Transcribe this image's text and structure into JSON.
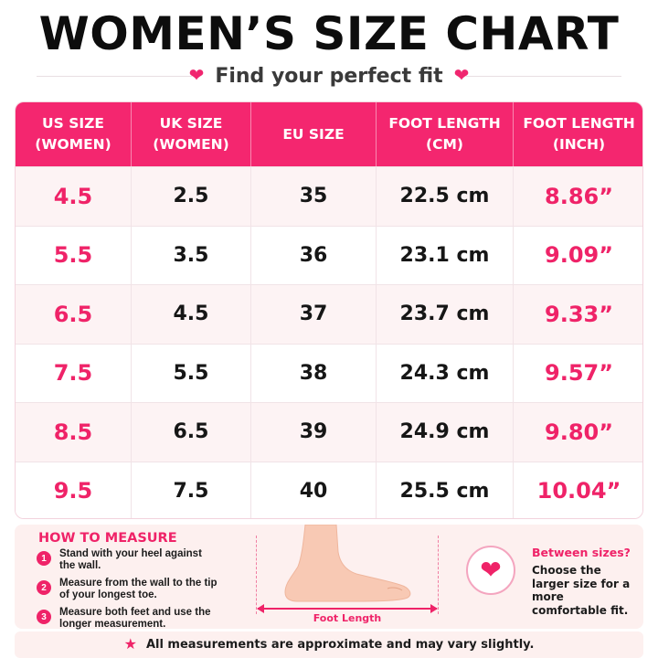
{
  "header": {
    "title": "WOMEN’S SIZE CHART",
    "subtitle": "Find your perfect fit",
    "heart_icon": "heart-icon",
    "accent_color": "#ef2368"
  },
  "table": {
    "columns": [
      {
        "line1": "US SIZE",
        "line2": "(WOMEN)"
      },
      {
        "line1": "UK SIZE",
        "line2": "(WOMEN)"
      },
      {
        "line1": "EU SIZE",
        "line2": ""
      },
      {
        "line1": "FOOT LENGTH",
        "line2": "(CM)"
      },
      {
        "line1": "FOOT LENGTH",
        "line2": "(INCH)"
      }
    ],
    "rows": [
      [
        "4.5",
        "2.5",
        "35",
        "22.5 cm",
        "8.86”"
      ],
      [
        "5.5",
        "3.5",
        "36",
        "23.1 cm",
        "9.09”"
      ],
      [
        "6.5",
        "4.5",
        "37",
        "23.7 cm",
        "9.33”"
      ],
      [
        "7.5",
        "5.5",
        "38",
        "24.3 cm",
        "9.57”"
      ],
      [
        "8.5",
        "6.5",
        "39",
        "24.9 cm",
        "9.80”"
      ],
      [
        "9.5",
        "7.5",
        "40",
        "25.5 cm",
        "10.04”"
      ]
    ]
  },
  "how_to_measure": {
    "title": "HOW TO MEASURE",
    "steps": [
      {
        "num": "1",
        "text": "Stand with your heel against the wall."
      },
      {
        "num": "2",
        "text": "Measure from the wall to the tip of your longest toe."
      },
      {
        "num": "3",
        "text": "Measure both feet and use the longer measurement."
      }
    ],
    "foot_label": "Foot Length"
  },
  "between_sizes": {
    "title": "Between sizes?",
    "text": "Choose the larger size for a more comfortable fit."
  },
  "note": {
    "text": "All measurements are approximate and may vary slightly.",
    "icon": "star-icon"
  }
}
